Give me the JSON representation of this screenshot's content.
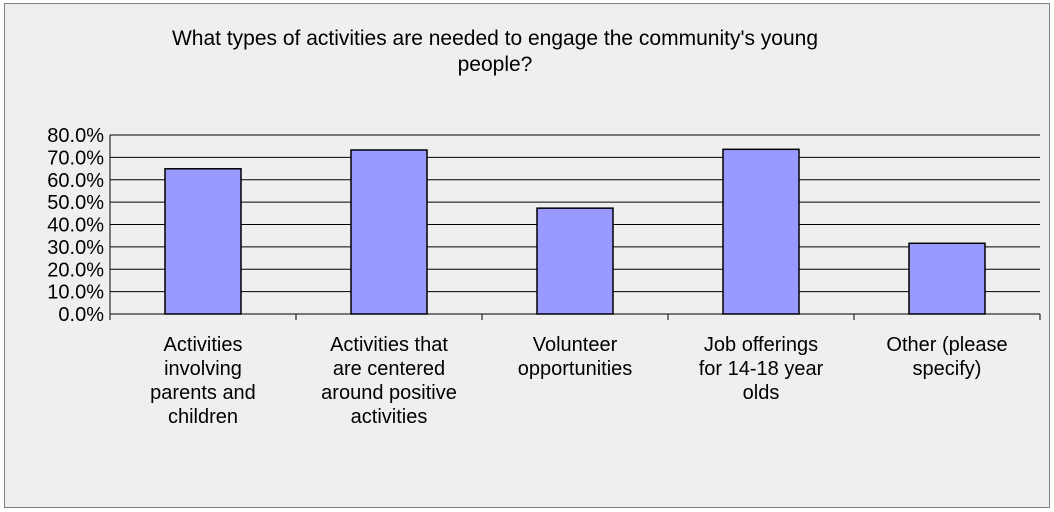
{
  "chart_data": {
    "type": "bar",
    "title": "What types of activities are needed to engage the community's young people?",
    "categories": [
      "Activities involving parents and children",
      "Activities that are centered around positive activities",
      "Volunteer opportunities",
      "Job offerings for 14-18 year olds",
      "Other (please specify)"
    ],
    "category_lines": [
      [
        "Activities",
        "involving",
        "parents and",
        "children"
      ],
      [
        "Activities that",
        "are centered",
        "around positive",
        "activities"
      ],
      [
        "Volunteer",
        "opportunities"
      ],
      [
        "Job offerings",
        "for 14-18 year",
        "olds"
      ],
      [
        "Other (please",
        "specify)"
      ]
    ],
    "series": [
      {
        "values": [
          64.9,
          73.3,
          47.3,
          73.6,
          31.6
        ]
      }
    ],
    "ylim": [
      0,
      80
    ],
    "yticks": [
      "0.0%",
      "10.0%",
      "20.0%",
      "30.0%",
      "40.0%",
      "50.0%",
      "60.0%",
      "70.0%",
      "80.0%"
    ],
    "grid": true,
    "legend": "none",
    "colors": {
      "bar": "#9999ff",
      "bar_border": "#000000",
      "grid": "#000000",
      "background": "#efefef"
    }
  }
}
